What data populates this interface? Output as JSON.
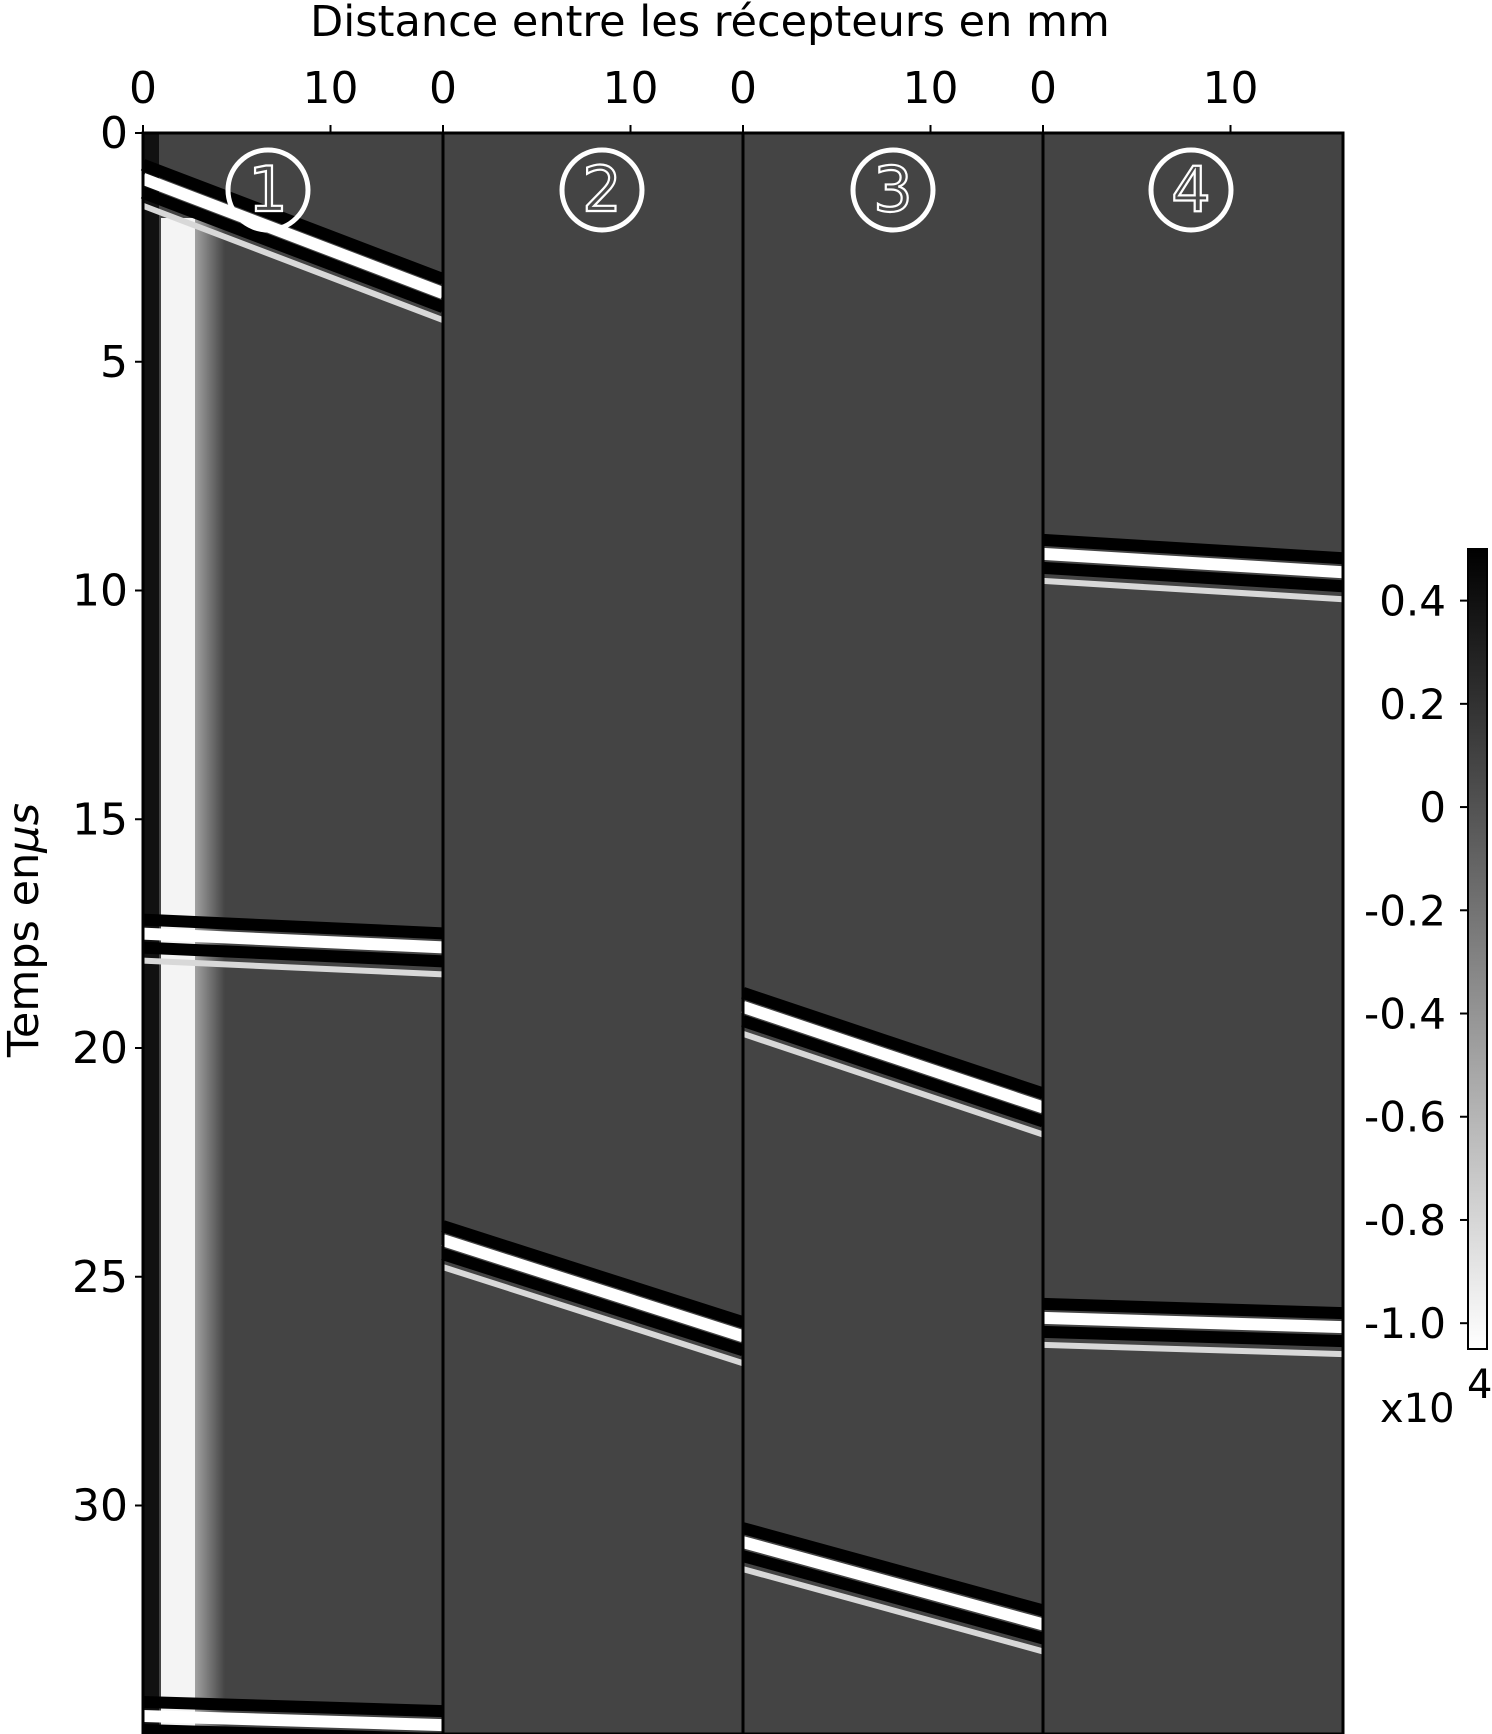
{
  "chart_data": {
    "type": "heatmap",
    "xlabel": "Distance entre les récepteurs en mm",
    "ylabel": "Temps en",
    "ylabel_symbol": "μs",
    "x_tick_labels": [
      "0",
      "10"
    ],
    "xlim_per_panel": [
      0,
      16
    ],
    "ylim": [
      0,
      35
    ],
    "y_ticks": [
      0,
      5,
      10,
      15,
      20,
      25,
      30
    ],
    "y_tick_labels": [
      "0",
      "5",
      "10",
      "15",
      "20",
      "25",
      "30"
    ],
    "colorbar": {
      "ticks": [
        0.4,
        0.2,
        0,
        -0.2,
        -0.4,
        -0.6,
        -0.8,
        -1.0
      ],
      "tick_labels": [
        "0.4",
        "0.2",
        "0",
        "-0.2",
        "-0.4",
        "-0.6",
        "-0.8",
        "-1.0"
      ],
      "range": [
        -1.05,
        0.5
      ],
      "multiplier_base": "x10",
      "multiplier_exponent": "4",
      "colormap": "gray, white = low, black = high"
    },
    "background_color": "#444444",
    "panels": [
      {
        "label": "1",
        "wavefronts": [
          {
            "t_start": 1.0,
            "t_end": 3.5
          },
          {
            "t_start": 17.5,
            "t_end": 17.8
          },
          {
            "t_start": 34.6,
            "t_end": 34.8
          }
        ]
      },
      {
        "label": "2",
        "wavefronts": [
          {
            "t_start": 24.2,
            "t_end": 26.3
          }
        ]
      },
      {
        "label": "3",
        "wavefronts": [
          {
            "t_start": 19.1,
            "t_end": 21.3
          },
          {
            "t_start": 30.8,
            "t_end": 32.6
          }
        ]
      },
      {
        "label": "4",
        "wavefronts": [
          {
            "t_start": 9.2,
            "t_end": 9.6
          },
          {
            "t_start": 25.9,
            "t_end": 26.1
          }
        ]
      }
    ]
  }
}
